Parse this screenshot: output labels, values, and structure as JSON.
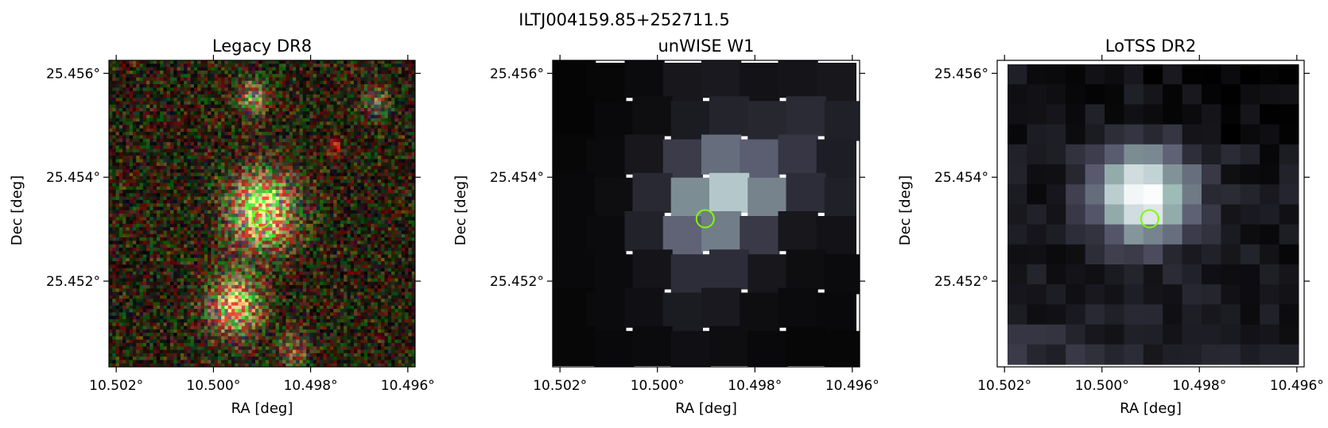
{
  "figure": {
    "title": "ILTJ004159.85+252711.5"
  },
  "panels": [
    {
      "title": "Legacy DR8",
      "xlabel": "RA [deg]",
      "ylabel": "Dec [deg]",
      "xticks": [
        "10.502°",
        "10.500°",
        "10.498°",
        "10.496°"
      ],
      "yticks": [
        "25.456°",
        "25.454°",
        "25.452°"
      ],
      "image": "rgb-optical-noise-with-galaxies"
    },
    {
      "title": "unWISE W1",
      "xlabel": "RA [deg]",
      "ylabel": "Dec [deg]",
      "xticks": [
        "10.502°",
        "10.500°",
        "10.498°",
        "10.496°"
      ],
      "yticks": [
        "25.456°",
        "25.454°",
        "25.452°"
      ],
      "image": "bone-colormap-coarse-pixels"
    },
    {
      "title": "LoTSS DR2",
      "xlabel": "RA [deg]",
      "ylabel": "Dec [deg]",
      "xticks": [
        "10.502°",
        "10.500°",
        "10.498°",
        "10.496°"
      ],
      "yticks": [
        "25.456°",
        "25.454°",
        "25.452°"
      ],
      "image": "bone-colormap-radio-pixels"
    }
  ],
  "marker": {
    "shape": "circle",
    "color": "#7cfc00"
  },
  "colors": {
    "marker": "#7cfc00",
    "axes": "#000000",
    "background": "#ffffff"
  }
}
